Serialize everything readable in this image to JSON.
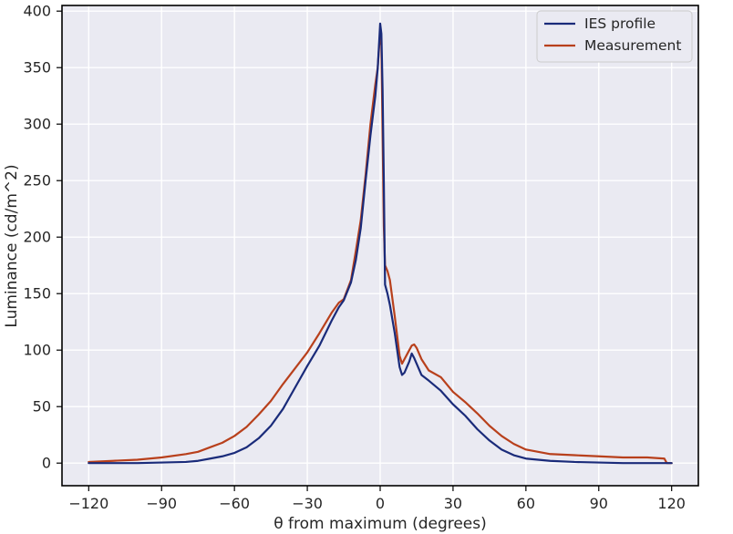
{
  "chart_data": {
    "type": "line",
    "xlabel": "θ from maximum (degrees)",
    "ylabel": "Luminance (cd/m^2)",
    "xlim": [
      -131,
      131
    ],
    "ylim": [
      -20,
      405
    ],
    "xticks": [
      -120,
      -90,
      -60,
      -30,
      0,
      30,
      60,
      90,
      120
    ],
    "yticks": [
      0,
      50,
      100,
      150,
      200,
      250,
      300,
      350,
      400
    ],
    "grid": true,
    "legend_position": "top-right",
    "colors": {
      "background": "#EAEAF2",
      "grid": "#FFFFFF",
      "frame": "#000000"
    },
    "series": [
      {
        "name": "IES profile",
        "color": "#1A2B7A",
        "x": [
          -120,
          -110,
          -100,
          -90,
          -80,
          -75,
          -70,
          -65,
          -60,
          -55,
          -50,
          -45,
          -40,
          -35,
          -30,
          -25,
          -20,
          -17,
          -15,
          -12,
          -10,
          -8,
          -6,
          -4,
          -2,
          -1,
          0,
          0.5,
          1,
          1.5,
          2,
          3,
          4,
          6,
          8,
          9,
          10,
          12,
          13,
          14,
          15,
          17,
          20,
          25,
          30,
          35,
          40,
          45,
          50,
          55,
          60,
          65,
          70,
          80,
          90,
          100,
          110,
          117,
          118,
          120
        ],
        "y": [
          0,
          0,
          0,
          0.5,
          1,
          2,
          4,
          6,
          9,
          14,
          22,
          33,
          48,
          67,
          86,
          104,
          126,
          138,
          144,
          160,
          180,
          208,
          250,
          290,
          325,
          350,
          389,
          380,
          330,
          250,
          158,
          150,
          140,
          115,
          85,
          78,
          80,
          90,
          97,
          93,
          88,
          78,
          73,
          64,
          52,
          42,
          30,
          20,
          12,
          7,
          4,
          3,
          2,
          1,
          0.5,
          0,
          0,
          0,
          0,
          0
        ]
      },
      {
        "name": "Measurement",
        "color": "#B8401C",
        "x": [
          -120,
          -110,
          -100,
          -90,
          -80,
          -75,
          -70,
          -65,
          -60,
          -55,
          -50,
          -45,
          -40,
          -35,
          -30,
          -25,
          -20,
          -17,
          -15,
          -12,
          -10,
          -8,
          -6,
          -4,
          -2,
          -1,
          0,
          0.5,
          1,
          1.5,
          2,
          3,
          4,
          6,
          8,
          9,
          10,
          12,
          13,
          14,
          15,
          17,
          20,
          25,
          30,
          35,
          40,
          45,
          50,
          55,
          60,
          65,
          70,
          80,
          90,
          100,
          110,
          117,
          118,
          120
        ],
        "y": [
          1,
          2,
          3,
          5,
          8,
          10,
          14,
          18,
          24,
          32,
          43,
          55,
          70,
          84,
          98,
          115,
          133,
          142,
          145,
          162,
          188,
          215,
          255,
          300,
          335,
          350,
          382,
          370,
          290,
          210,
          175,
          170,
          162,
          130,
          95,
          88,
          92,
          100,
          104,
          105,
          102,
          92,
          82,
          76,
          63,
          54,
          44,
          33,
          24,
          17,
          12,
          10,
          8,
          7,
          6,
          5,
          5,
          4,
          0,
          0
        ]
      }
    ]
  }
}
